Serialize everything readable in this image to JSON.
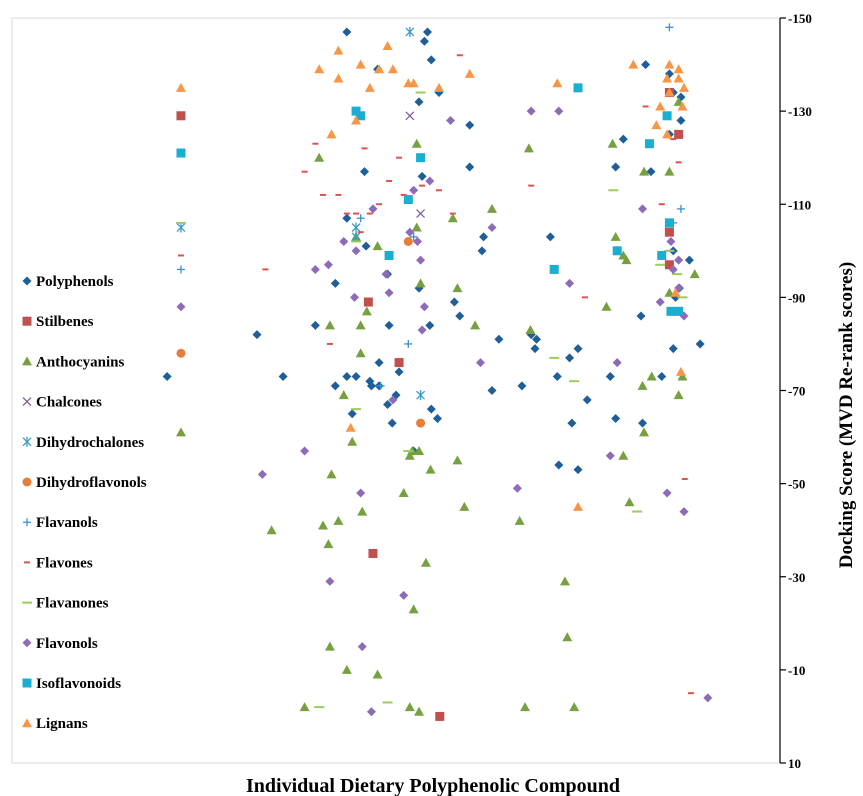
{
  "chart_data": {
    "type": "scatter",
    "xlabel": "Individual Dietary Polyphenolic Compound",
    "ylabel": "Docking Score (MVD Re-rank scores)",
    "ylim": [
      10,
      -150
    ],
    "y_ticks": [
      "-150",
      "-130",
      "-110",
      "-90",
      "-70",
      "-50",
      "-30",
      "-10",
      "10"
    ],
    "y_tick_values": [
      -150,
      -130,
      -110,
      -90,
      -70,
      -50,
      -30,
      -10,
      10
    ],
    "x_range": [
      0,
      100
    ],
    "grid": false,
    "legend_position": "left",
    "series": [
      {
        "name": "Polyphenols",
        "color": "#1f5f99",
        "marker": "diamond",
        "points": [
          [
            20.2,
            -73
          ],
          [
            31.9,
            -82
          ],
          [
            35.3,
            -73
          ],
          [
            39.5,
            -84
          ],
          [
            42.1,
            -93
          ],
          [
            42.1,
            -71
          ],
          [
            43.6,
            -147
          ],
          [
            43.6,
            -107
          ],
          [
            43.6,
            -73
          ],
          [
            44.3,
            -65
          ],
          [
            44.8,
            -73
          ],
          [
            45.9,
            -117
          ],
          [
            46.1,
            -101
          ],
          [
            46.6,
            -72
          ],
          [
            46.8,
            -71
          ],
          [
            47.6,
            -139
          ],
          [
            47.8,
            -71
          ],
          [
            47.8,
            -76
          ],
          [
            48.9,
            -95
          ],
          [
            48.9,
            -67
          ],
          [
            49.1,
            -84
          ],
          [
            49.5,
            -63
          ],
          [
            50.0,
            -69
          ],
          [
            50.4,
            -74
          ],
          [
            52.3,
            -57
          ],
          [
            53.0,
            -92
          ],
          [
            53.0,
            -132
          ],
          [
            53.4,
            -116
          ],
          [
            53.7,
            -145
          ],
          [
            54.1,
            -147
          ],
          [
            54.4,
            -84
          ],
          [
            54.6,
            -66
          ],
          [
            54.6,
            -141
          ],
          [
            55.4,
            -64
          ],
          [
            55.6,
            -134
          ],
          [
            57.6,
            -89
          ],
          [
            58.3,
            -86
          ],
          [
            59.6,
            -118
          ],
          [
            59.6,
            -127
          ],
          [
            61.2,
            -100
          ],
          [
            61.4,
            -103
          ],
          [
            62.5,
            -70
          ],
          [
            63.4,
            -81
          ],
          [
            66.4,
            -71
          ],
          [
            67.6,
            -82
          ],
          [
            68.1,
            -79
          ],
          [
            68.3,
            -81
          ],
          [
            70.1,
            -103
          ],
          [
            71.0,
            -73
          ],
          [
            71.2,
            -54
          ],
          [
            72.6,
            -77
          ],
          [
            72.9,
            -63
          ],
          [
            73.7,
            -53
          ],
          [
            73.7,
            -79
          ],
          [
            74.9,
            -68
          ],
          [
            77.9,
            -73
          ],
          [
            78.6,
            -118
          ],
          [
            78.6,
            -64
          ],
          [
            79.6,
            -124
          ],
          [
            81.9,
            -86
          ],
          [
            82.1,
            -63
          ],
          [
            82.5,
            -140
          ],
          [
            83.2,
            -117
          ],
          [
            84.6,
            -73
          ],
          [
            85.6,
            -138
          ],
          [
            85.6,
            -125
          ],
          [
            86.1,
            -79
          ],
          [
            86.1,
            -134
          ],
          [
            86.1,
            -100
          ],
          [
            86.4,
            -90
          ],
          [
            86.9,
            -92
          ],
          [
            87.1,
            -128
          ],
          [
            87.1,
            -133
          ],
          [
            88.2,
            -98
          ],
          [
            89.6,
            -80
          ]
        ]
      },
      {
        "name": "Stilbenes",
        "color": "#c0504d",
        "marker": "square",
        "points": [
          [
            22.0,
            -129
          ],
          [
            46.4,
            -89
          ],
          [
            47.0,
            -35
          ],
          [
            50.4,
            -76
          ],
          [
            55.7,
            0
          ],
          [
            85.6,
            -104
          ],
          [
            85.6,
            -97
          ],
          [
            85.6,
            -134
          ],
          [
            86.8,
            -125
          ]
        ]
      },
      {
        "name": "Anthocyanins",
        "color": "#77a040",
        "marker": "triangle",
        "points": [
          [
            22.0,
            -61
          ],
          [
            33.8,
            -40
          ],
          [
            38.1,
            -2
          ],
          [
            40.0,
            -120
          ],
          [
            40.5,
            -41
          ],
          [
            41.2,
            -37
          ],
          [
            41.4,
            -15
          ],
          [
            41.4,
            -84
          ],
          [
            41.6,
            -52
          ],
          [
            42.5,
            -42
          ],
          [
            43.2,
            -69
          ],
          [
            43.6,
            -10
          ],
          [
            44.3,
            -59
          ],
          [
            44.8,
            -103
          ],
          [
            45.4,
            -84
          ],
          [
            45.4,
            -78
          ],
          [
            45.6,
            -44
          ],
          [
            46.2,
            -87
          ],
          [
            47.6,
            -101
          ],
          [
            47.6,
            -9
          ],
          [
            51.0,
            -48
          ],
          [
            51.8,
            -56
          ],
          [
            51.8,
            -2
          ],
          [
            52.1,
            -57
          ],
          [
            52.3,
            -23
          ],
          [
            52.7,
            -105
          ],
          [
            52.7,
            -123
          ],
          [
            53.0,
            -1
          ],
          [
            53.0,
            -57
          ],
          [
            53.2,
            -93
          ],
          [
            53.9,
            -33
          ],
          [
            54.5,
            -53
          ],
          [
            57.4,
            -107
          ],
          [
            58.0,
            -55
          ],
          [
            58.0,
            -92
          ],
          [
            58.9,
            -45
          ],
          [
            60.3,
            -84
          ],
          [
            62.5,
            -109
          ],
          [
            66.1,
            -42
          ],
          [
            66.8,
            -2
          ],
          [
            67.3,
            -122
          ],
          [
            67.5,
            -83
          ],
          [
            72.0,
            -29
          ],
          [
            72.3,
            -17
          ],
          [
            73.2,
            -2
          ],
          [
            77.4,
            -88
          ],
          [
            78.2,
            -123
          ],
          [
            78.6,
            -103
          ],
          [
            79.6,
            -99
          ],
          [
            79.6,
            -56
          ],
          [
            80.0,
            -98
          ],
          [
            80.4,
            -46
          ],
          [
            82.1,
            -71
          ],
          [
            82.3,
            -61
          ],
          [
            82.3,
            -117
          ],
          [
            83.3,
            -73
          ],
          [
            85.6,
            -91
          ],
          [
            85.6,
            -117
          ],
          [
            86.8,
            -69
          ],
          [
            86.8,
            -132
          ],
          [
            87.3,
            -73
          ],
          [
            88.9,
            -95
          ]
        ]
      },
      {
        "name": "Chalcones",
        "color": "#7b5fa0",
        "marker": "x",
        "points": [
          [
            51.8,
            -129
          ],
          [
            53.2,
            -108
          ]
        ]
      },
      {
        "name": "Dihydrochalones",
        "color": "#3b9bc4",
        "marker": "asterisk",
        "points": [
          [
            22.0,
            -105
          ],
          [
            44.8,
            -105
          ],
          [
            44.8,
            -103
          ],
          [
            51.8,
            -147
          ],
          [
            53.2,
            -69
          ]
        ]
      },
      {
        "name": "Dihydroflavonols",
        "color": "#e67e3a",
        "marker": "circle",
        "points": [
          [
            22.0,
            -78
          ],
          [
            51.6,
            -102
          ],
          [
            53.2,
            -63
          ]
        ]
      },
      {
        "name": "Flavanols",
        "color": "#3b8fd4",
        "marker": "plus",
        "points": [
          [
            22.0,
            -96
          ],
          [
            45.4,
            -107
          ],
          [
            48.0,
            -71
          ],
          [
            51.6,
            -80
          ],
          [
            52.3,
            -103
          ],
          [
            85.6,
            -148
          ],
          [
            86.1,
            -106
          ],
          [
            87.1,
            -109
          ]
        ]
      },
      {
        "name": "Flavones",
        "color": "#d9534f",
        "marker": "dash",
        "points": [
          [
            22.0,
            -99
          ],
          [
            33.0,
            -96
          ],
          [
            38.1,
            -117
          ],
          [
            39.5,
            -123
          ],
          [
            40.5,
            -112
          ],
          [
            41.4,
            -80
          ],
          [
            42.5,
            -112
          ],
          [
            43.6,
            -108
          ],
          [
            44.8,
            -108
          ],
          [
            45.4,
            -104
          ],
          [
            45.9,
            -122
          ],
          [
            46.6,
            -108
          ],
          [
            47.8,
            -110
          ],
          [
            49.1,
            -115
          ],
          [
            50.4,
            -120
          ],
          [
            51.0,
            -112
          ],
          [
            53.4,
            -114
          ],
          [
            55.6,
            -113
          ],
          [
            57.4,
            -108
          ],
          [
            58.3,
            -142
          ],
          [
            67.6,
            -114
          ],
          [
            74.6,
            -90
          ],
          [
            82.5,
            -131
          ],
          [
            84.6,
            -110
          ],
          [
            85.8,
            -100
          ],
          [
            86.1,
            -124
          ],
          [
            86.8,
            -119
          ],
          [
            87.6,
            -51
          ],
          [
            88.4,
            -5
          ]
        ]
      },
      {
        "name": "Flavanones",
        "color": "#9acd5a",
        "marker": "hline",
        "points": [
          [
            22.0,
            -106
          ],
          [
            40.0,
            -2
          ],
          [
            44.8,
            -66
          ],
          [
            44.8,
            -102
          ],
          [
            48.9,
            -3
          ],
          [
            51.6,
            -57
          ],
          [
            53.2,
            -134
          ],
          [
            70.6,
            -77
          ],
          [
            73.2,
            -72
          ],
          [
            78.3,
            -113
          ],
          [
            81.4,
            -44
          ],
          [
            84.4,
            -97
          ],
          [
            85.6,
            -100
          ],
          [
            86.6,
            -95
          ],
          [
            87.3,
            -90
          ]
        ]
      },
      {
        "name": "Flavonols",
        "color": "#8e6bb8",
        "marker": "diamond",
        "points": [
          [
            22.0,
            -88
          ],
          [
            32.6,
            -52
          ],
          [
            39.5,
            -96
          ],
          [
            38.1,
            -57
          ],
          [
            41.2,
            -97
          ],
          [
            41.4,
            -29
          ],
          [
            43.2,
            -102
          ],
          [
            44.8,
            -100
          ],
          [
            44.6,
            -90
          ],
          [
            45.4,
            -48
          ],
          [
            45.6,
            -15
          ],
          [
            46.8,
            -1
          ],
          [
            47.0,
            -109
          ],
          [
            48.7,
            -95
          ],
          [
            49.1,
            -91
          ],
          [
            49.6,
            -68
          ],
          [
            51.0,
            -26
          ],
          [
            51.8,
            -104
          ],
          [
            52.3,
            -113
          ],
          [
            52.8,
            -102
          ],
          [
            53.2,
            -98
          ],
          [
            53.4,
            -83
          ],
          [
            53.7,
            -88
          ],
          [
            54.4,
            -115
          ],
          [
            57.1,
            -128
          ],
          [
            61.0,
            -76
          ],
          [
            62.5,
            -105
          ],
          [
            65.8,
            -49
          ],
          [
            67.6,
            -130
          ],
          [
            71.2,
            -130
          ],
          [
            72.6,
            -93
          ],
          [
            77.9,
            -56
          ],
          [
            78.8,
            -76
          ],
          [
            82.1,
            -109
          ],
          [
            84.4,
            -89
          ],
          [
            85.8,
            -102
          ],
          [
            85.3,
            -48
          ],
          [
            86.1,
            -96
          ],
          [
            86.8,
            -92
          ],
          [
            86.8,
            -98
          ],
          [
            87.5,
            -86
          ],
          [
            87.5,
            -44
          ],
          [
            90.6,
            -4
          ]
        ]
      },
      {
        "name": "Isoflavonoids",
        "color": "#1aaed0",
        "marker": "square",
        "points": [
          [
            22.0,
            -121
          ],
          [
            44.8,
            -130
          ],
          [
            45.4,
            -129
          ],
          [
            49.1,
            -99
          ],
          [
            51.6,
            -111
          ],
          [
            53.2,
            -120
          ],
          [
            70.6,
            -96
          ],
          [
            73.7,
            -135
          ],
          [
            78.8,
            -100
          ],
          [
            83.0,
            -123
          ],
          [
            84.6,
            -99
          ],
          [
            85.3,
            -129
          ],
          [
            85.6,
            -106
          ],
          [
            85.8,
            -87
          ],
          [
            86.8,
            -87
          ]
        ]
      },
      {
        "name": "Lignans",
        "color": "#f79646",
        "marker": "triangle",
        "points": [
          [
            22.0,
            -135
          ],
          [
            40.0,
            -139
          ],
          [
            41.6,
            -125
          ],
          [
            42.5,
            -143
          ],
          [
            42.5,
            -137
          ],
          [
            44.1,
            -62
          ],
          [
            44.8,
            -128
          ],
          [
            45.4,
            -140
          ],
          [
            46.6,
            -135
          ],
          [
            47.8,
            -139
          ],
          [
            48.9,
            -144
          ],
          [
            49.6,
            -139
          ],
          [
            51.6,
            -136
          ],
          [
            52.3,
            -136
          ],
          [
            55.6,
            -135
          ],
          [
            59.6,
            -138
          ],
          [
            71.0,
            -136
          ],
          [
            73.7,
            -45
          ],
          [
            80.9,
            -140
          ],
          [
            83.9,
            -127
          ],
          [
            84.4,
            -131
          ],
          [
            85.3,
            -137
          ],
          [
            85.6,
            -140
          ],
          [
            85.6,
            -134
          ],
          [
            85.3,
            -125
          ],
          [
            86.4,
            -91
          ],
          [
            86.8,
            -139
          ],
          [
            86.8,
            -137
          ],
          [
            87.3,
            -131
          ],
          [
            87.5,
            -135
          ],
          [
            87.1,
            -74
          ]
        ]
      }
    ]
  }
}
